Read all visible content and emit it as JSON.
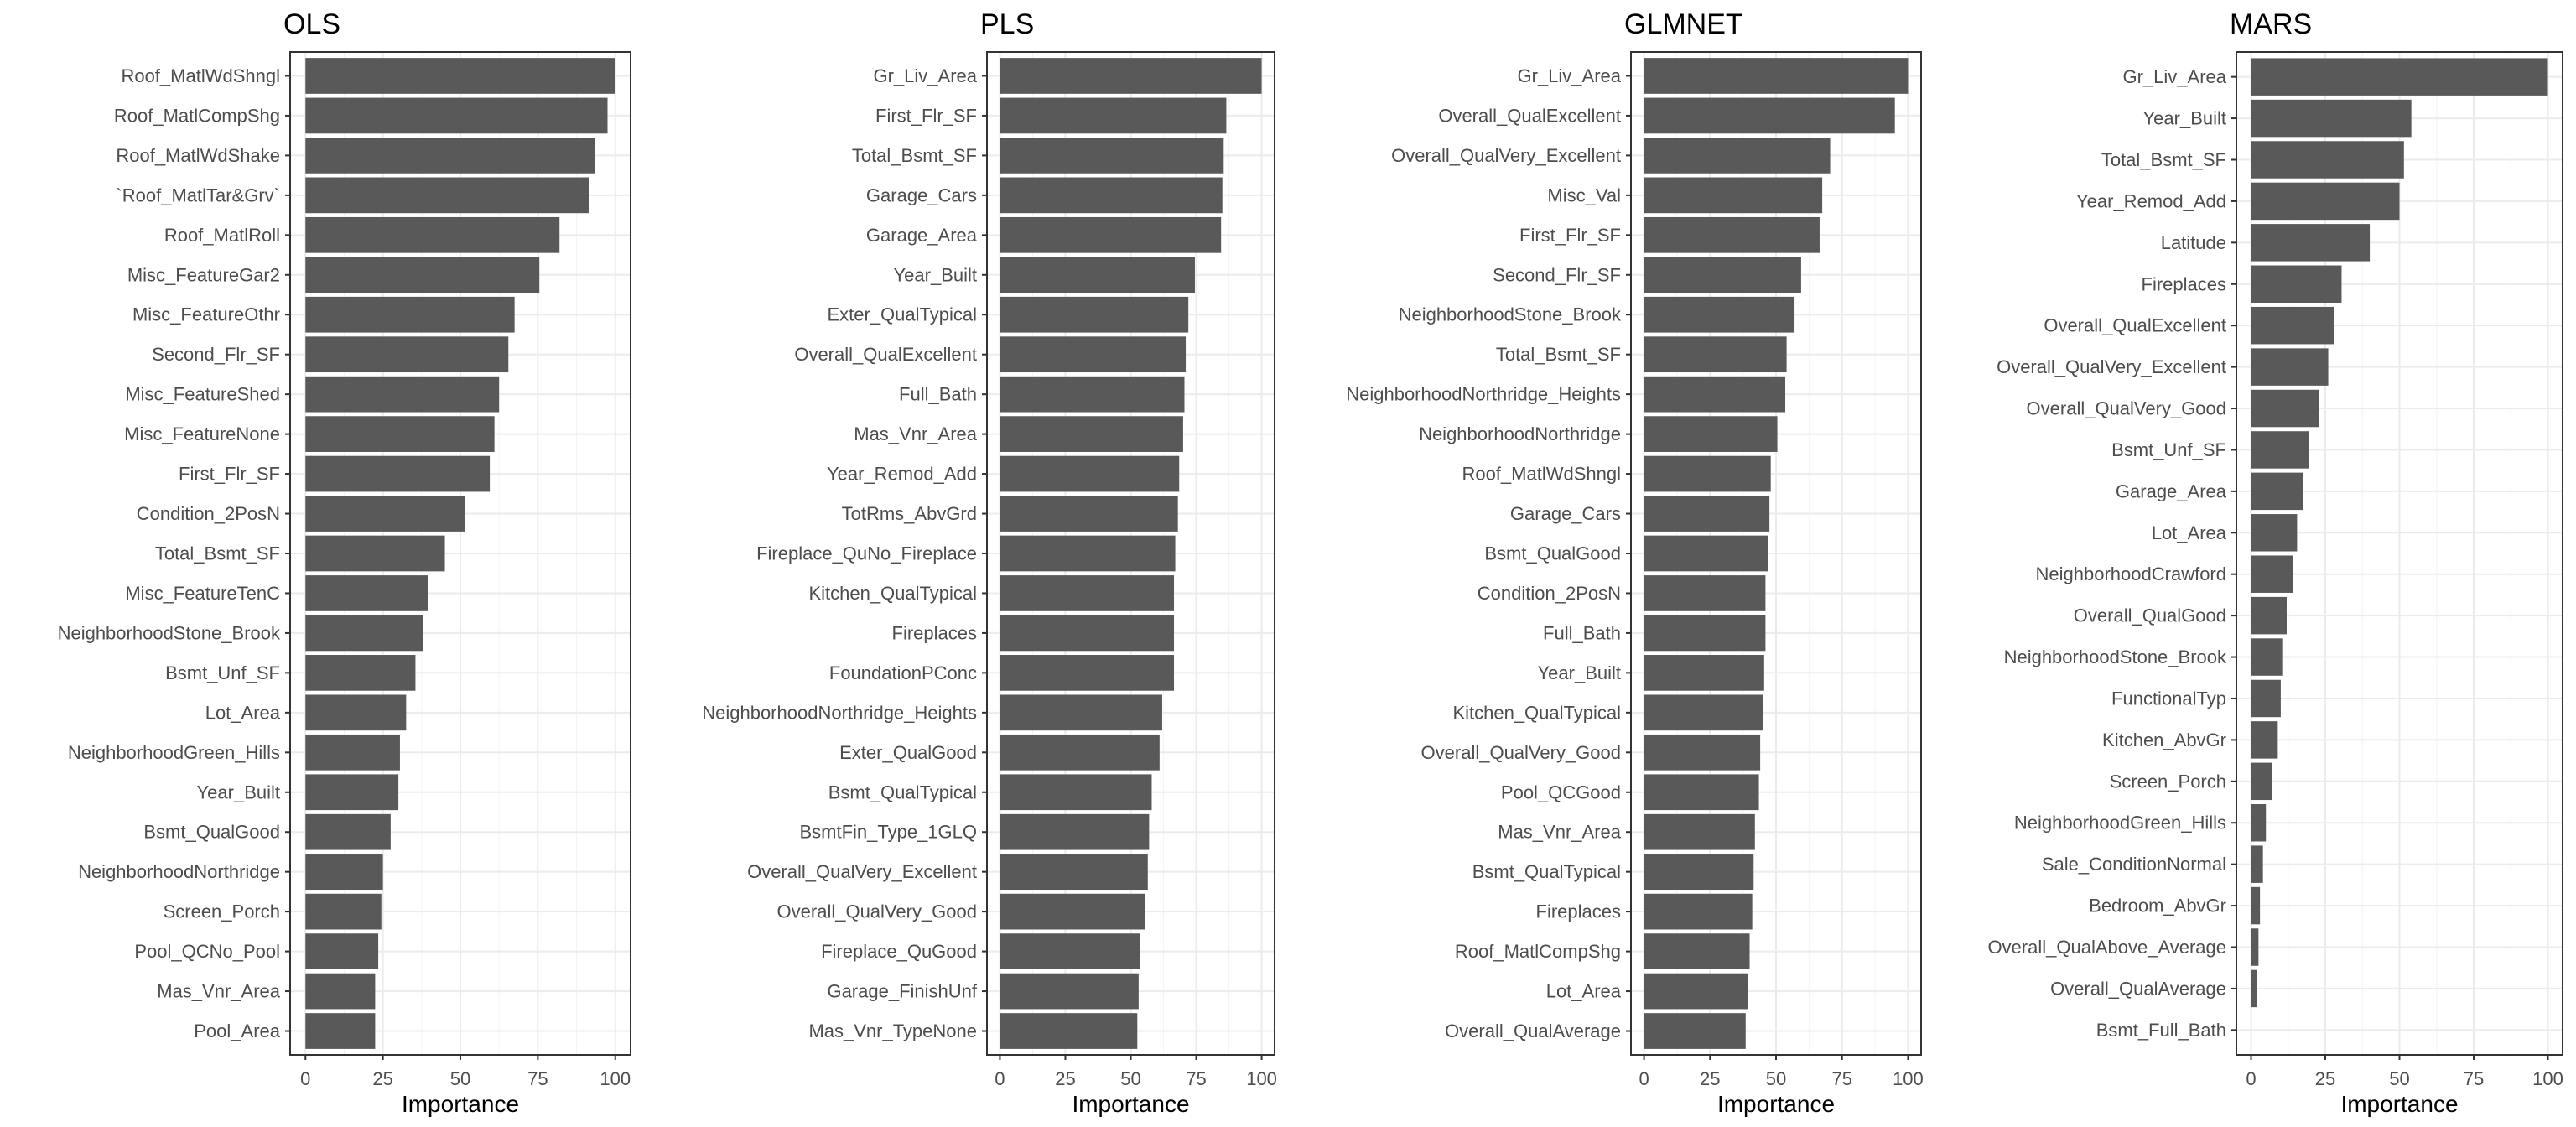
{
  "chart_data": [
    {
      "type": "bar",
      "orientation": "horizontal",
      "title": "OLS",
      "xlabel": "Importance",
      "ylabel": "",
      "xlim": [
        0,
        100
      ],
      "xticks": [
        0,
        25,
        50,
        75,
        100
      ],
      "grid": true,
      "bar_color": "#595959",
      "categories": [
        "Roof_MatlWdShngl",
        "Roof_MatlCompShg",
        "Roof_MatlWdShake",
        "`Roof_MatlTar&Grv`",
        "Roof_MatlRoll",
        "Misc_FeatureGar2",
        "Misc_FeatureOthr",
        "Second_Flr_SF",
        "Misc_FeatureShed",
        "Misc_FeatureNone",
        "First_Flr_SF",
        "Condition_2PosN",
        "Total_Bsmt_SF",
        "Misc_FeatureTenC",
        "NeighborhoodStone_Brook",
        "Bsmt_Unf_SF",
        "Lot_Area",
        "NeighborhoodGreen_Hills",
        "Year_Built",
        "Bsmt_QualGood",
        "NeighborhoodNorthridge",
        "Screen_Porch",
        "Pool_QCNo_Pool",
        "Mas_Vnr_Area",
        "Pool_Area"
      ],
      "values": [
        100,
        97.5,
        93.5,
        91.5,
        82,
        75.5,
        67.5,
        65.5,
        62.5,
        61,
        59.5,
        51.5,
        45,
        39.5,
        38,
        35.5,
        32.5,
        30.5,
        30,
        27.5,
        25,
        24.5,
        23.5,
        22.5,
        22.5
      ]
    },
    {
      "type": "bar",
      "orientation": "horizontal",
      "title": "PLS",
      "xlabel": "Importance",
      "ylabel": "",
      "xlim": [
        0,
        100
      ],
      "xticks": [
        0,
        25,
        50,
        75,
        100
      ],
      "grid": true,
      "bar_color": "#595959",
      "categories": [
        "Gr_Liv_Area",
        "First_Flr_SF",
        "Total_Bsmt_SF",
        "Garage_Cars",
        "Garage_Area",
        "Year_Built",
        "Exter_QualTypical",
        "Overall_QualExcellent",
        "Full_Bath",
        "Mas_Vnr_Area",
        "Year_Remod_Add",
        "TotRms_AbvGrd",
        "Fireplace_QuNo_Fireplace",
        "Kitchen_QualTypical",
        "Fireplaces",
        "FoundationPConc",
        "NeighborhoodNorthridge_Heights",
        "Exter_QualGood",
        "Bsmt_QualTypical",
        "BsmtFin_Type_1GLQ",
        "Overall_QualVery_Excellent",
        "Overall_QualVery_Good",
        "Fireplace_QuGood",
        "Garage_FinishUnf",
        "Mas_Vnr_TypeNone"
      ],
      "values": [
        100,
        86.5,
        85.5,
        85,
        84.5,
        74.5,
        72,
        71,
        70.5,
        70,
        68.5,
        68,
        67,
        66.5,
        66.5,
        66.5,
        62,
        61,
        58,
        57,
        56.5,
        55.5,
        53.5,
        53,
        52.5
      ]
    },
    {
      "type": "bar",
      "orientation": "horizontal",
      "title": "GLMNET",
      "xlabel": "Importance",
      "ylabel": "",
      "xlim": [
        0,
        100
      ],
      "xticks": [
        0,
        25,
        50,
        75,
        100
      ],
      "grid": true,
      "bar_color": "#595959",
      "categories": [
        "Gr_Liv_Area",
        "Overall_QualExcellent",
        "Overall_QualVery_Excellent",
        "Misc_Val",
        "First_Flr_SF",
        "Second_Flr_SF",
        "NeighborhoodStone_Brook",
        "Total_Bsmt_SF",
        "NeighborhoodNorthridge_Heights",
        "NeighborhoodNorthridge",
        "Roof_MatlWdShngl",
        "Garage_Cars",
        "Bsmt_QualGood",
        "Condition_2PosN",
        "Full_Bath",
        "Year_Built",
        "Kitchen_QualTypical",
        "Overall_QualVery_Good",
        "Pool_QCGood",
        "Mas_Vnr_Area",
        "Bsmt_QualTypical",
        "Fireplaces",
        "Roof_MatlCompShg",
        "Lot_Area",
        "Overall_QualAverage"
      ],
      "values": [
        100,
        95,
        70.5,
        67.5,
        66.5,
        59.5,
        57,
        54,
        53.5,
        50.5,
        48,
        47.5,
        47,
        46,
        46,
        45.5,
        45,
        44,
        43.5,
        42,
        41.5,
        41,
        40,
        39.5,
        38.5
      ]
    },
    {
      "type": "bar",
      "orientation": "horizontal",
      "title": "MARS",
      "xlabel": "Importance",
      "ylabel": "",
      "xlim": [
        0,
        100
      ],
      "xticks": [
        0,
        25,
        50,
        75,
        100
      ],
      "grid": true,
      "bar_color": "#595959",
      "categories": [
        "Gr_Liv_Area",
        "Year_Built",
        "Total_Bsmt_SF",
        "Year_Remod_Add",
        "Latitude",
        "Fireplaces",
        "Overall_QualExcellent",
        "Overall_QualVery_Excellent",
        "Overall_QualVery_Good",
        "Bsmt_Unf_SF",
        "Garage_Area",
        "Lot_Area",
        "NeighborhoodCrawford",
        "Overall_QualGood",
        "NeighborhoodStone_Brook",
        "FunctionalTyp",
        "Kitchen_AbvGr",
        "Screen_Porch",
        "NeighborhoodGreen_Hills",
        "Sale_ConditionNormal",
        "Bedroom_AbvGr",
        "Overall_QualAbove_Average",
        "Overall_QualAverage",
        "Bsmt_Full_Bath"
      ],
      "values": [
        100,
        54,
        51.5,
        50,
        40,
        30.5,
        28,
        26,
        23,
        19.5,
        17.5,
        15.5,
        14,
        12,
        10.5,
        10,
        9,
        7,
        5,
        4,
        3,
        2.5,
        2,
        0
      ]
    }
  ]
}
